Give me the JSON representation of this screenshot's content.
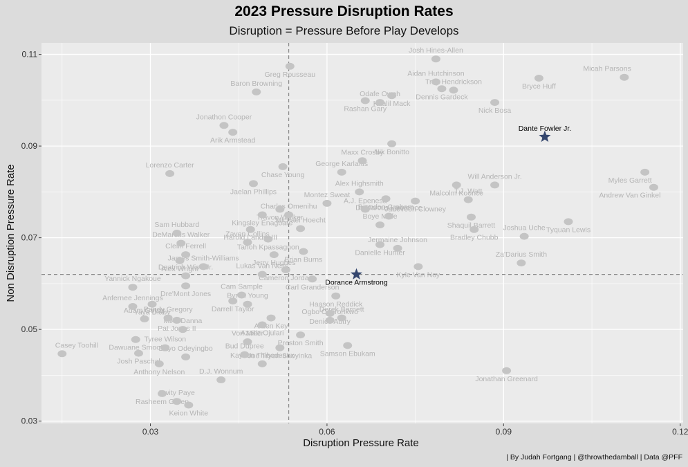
{
  "chart_data": {
    "type": "scatter",
    "title": "2023 Pressure Disruption Rates",
    "subtitle": "Disruption =  Pressure Before Play Develops",
    "xlabel": "Disruption Pressure Rate",
    "ylabel": "Non Disruption Pressure Rate",
    "xlim": [
      0.0115,
      0.1205
    ],
    "ylim": [
      0.0295,
      0.1125
    ],
    "xticks": [
      "0.03",
      "0.06",
      "0.09",
      "0.12"
    ],
    "yticks": [
      "0.03",
      "0.05",
      "0.07",
      "0.09",
      "0.11"
    ],
    "reference_lines": {
      "x": 0.0535,
      "y": 0.062
    },
    "grid": true,
    "caption": "| By Judah Fortgang | @throwthedamball | Data @PFF",
    "colors": {
      "background": "#dcdcdc",
      "panel": "#ebebeb",
      "grid": "#ffffff",
      "muted": "#c4c4c4",
      "highlight": "#34466e"
    },
    "points": [
      {
        "name": "Josh Hines-Allen",
        "x": 0.0785,
        "y": 0.109,
        "highlight": false
      },
      {
        "name": "Greg Rousseau",
        "x": 0.0537,
        "y": 0.1074,
        "highlight": false
      },
      {
        "name": "Aidan Hutchinson",
        "x": 0.0785,
        "y": 0.104,
        "highlight": false
      },
      {
        "name": "Bryce Huff",
        "x": 0.096,
        "y": 0.1048,
        "highlight": false
      },
      {
        "name": "Micah Parsons",
        "x": 0.1105,
        "y": 0.105,
        "highlight": false
      },
      {
        "name": "Dennis Gardeck",
        "x": 0.0795,
        "y": 0.1025,
        "highlight": false
      },
      {
        "name": "Baron Browning",
        "x": 0.048,
        "y": 0.1018,
        "highlight": false
      },
      {
        "name": "Khalil Mack",
        "x": 0.071,
        "y": 0.101,
        "highlight": false
      },
      {
        "name": "Trey Hendrickson",
        "x": 0.0815,
        "y": 0.1022,
        "highlight": false
      },
      {
        "name": "Rashan Gary",
        "x": 0.0665,
        "y": 0.0999,
        "highlight": false
      },
      {
        "name": "Odafe Oweh",
        "x": 0.069,
        "y": 0.0995,
        "highlight": false
      },
      {
        "name": "Nick Bosa",
        "x": 0.0885,
        "y": 0.0995,
        "highlight": false
      },
      {
        "name": "Jonathon Cooper",
        "x": 0.0425,
        "y": 0.0945,
        "highlight": false
      },
      {
        "name": "Arik Armstead",
        "x": 0.044,
        "y": 0.093,
        "highlight": false
      },
      {
        "name": "Dante Fowler Jr.",
        "x": 0.097,
        "y": 0.092,
        "highlight": true
      },
      {
        "name": "Nik Bonitto",
        "x": 0.071,
        "y": 0.0905,
        "highlight": false
      },
      {
        "name": "Maxx Crosby",
        "x": 0.066,
        "y": 0.0868,
        "highlight": false
      },
      {
        "name": "Chase Young",
        "x": 0.0525,
        "y": 0.0855,
        "highlight": false
      },
      {
        "name": "Lorenzo Carter",
        "x": 0.0333,
        "y": 0.084,
        "highlight": false
      },
      {
        "name": "Myles Garrett",
        "x": 0.114,
        "y": 0.0843,
        "highlight": false
      },
      {
        "name": "George Karlaftis",
        "x": 0.0625,
        "y": 0.0843,
        "highlight": false
      },
      {
        "name": "Malcolm Koonce",
        "x": 0.082,
        "y": 0.0815,
        "highlight": false
      },
      {
        "name": "Will Anderson Jr.",
        "x": 0.0885,
        "y": 0.0815,
        "highlight": false
      },
      {
        "name": "Jaelan Phillips",
        "x": 0.0475,
        "y": 0.0818,
        "highlight": false
      },
      {
        "name": "Alex Highsmith",
        "x": 0.0655,
        "y": 0.08,
        "highlight": false
      },
      {
        "name": "Andrew Van Ginkel",
        "x": 0.1155,
        "y": 0.081,
        "highlight": false
      },
      {
        "name": "T.J. Watt",
        "x": 0.084,
        "y": 0.0783,
        "highlight": false
      },
      {
        "name": "Brandon Graham",
        "x": 0.07,
        "y": 0.0785,
        "highlight": false
      },
      {
        "name": "Montez Sweat",
        "x": 0.06,
        "y": 0.0775,
        "highlight": false
      },
      {
        "name": "Travon Walker",
        "x": 0.052,
        "y": 0.0762,
        "highlight": false
      },
      {
        "name": "A.J. Epenesa",
        "x": 0.0665,
        "y": 0.0762,
        "highlight": false
      },
      {
        "name": "Jadeveon Clowney",
        "x": 0.075,
        "y": 0.078,
        "highlight": false
      },
      {
        "name": "DeMarcus Lawrence",
        "x": 0.0705,
        "y": 0.0747,
        "highlight": false
      },
      {
        "name": "Kingsley Enagbare",
        "x": 0.049,
        "y": 0.075,
        "highlight": false
      },
      {
        "name": "Charles Omenihu",
        "x": 0.0535,
        "y": 0.075,
        "highlight": false
      },
      {
        "name": "Shaquil Barrett",
        "x": 0.0845,
        "y": 0.0745,
        "highlight": false
      },
      {
        "name": "Boye Mafe",
        "x": 0.069,
        "y": 0.0728,
        "highlight": false
      },
      {
        "name": "Tyquan Lewis",
        "x": 0.101,
        "y": 0.0735,
        "highlight": false
      },
      {
        "name": "Sam Hubbard",
        "x": 0.0345,
        "y": 0.071,
        "highlight": false
      },
      {
        "name": "Harold Landry III",
        "x": 0.047,
        "y": 0.0718,
        "highlight": false
      },
      {
        "name": "Michael Hoecht",
        "x": 0.0555,
        "y": 0.072,
        "highlight": false
      },
      {
        "name": "Bradley Chubb",
        "x": 0.085,
        "y": 0.0718,
        "highlight": false
      },
      {
        "name": "Zaven Collins",
        "x": 0.0465,
        "y": 0.069,
        "highlight": false
      },
      {
        "name": "Tanoh Kpassagnon",
        "x": 0.05,
        "y": 0.0697,
        "highlight": false
      },
      {
        "name": "DeMarcus Walker",
        "x": 0.0352,
        "y": 0.0688,
        "highlight": false
      },
      {
        "name": "Danielle Hunter",
        "x": 0.069,
        "y": 0.0685,
        "highlight": false
      },
      {
        "name": "Joshua Uche",
        "x": 0.0935,
        "y": 0.0703,
        "highlight": false
      },
      {
        "name": "Brian Burns",
        "x": 0.056,
        "y": 0.067,
        "highlight": false
      },
      {
        "name": "Jermaine Johnson",
        "x": 0.072,
        "y": 0.0677,
        "highlight": false
      },
      {
        "name": "Jerry Hughes",
        "x": 0.051,
        "y": 0.0663,
        "highlight": false
      },
      {
        "name": "Clelin Ferrell",
        "x": 0.036,
        "y": 0.0663,
        "highlight": false
      },
      {
        "name": "Alex Wright",
        "x": 0.035,
        "y": 0.065,
        "highlight": false
      },
      {
        "name": "Za'Darius Smith",
        "x": 0.093,
        "y": 0.0645,
        "highlight": false
      },
      {
        "name": "Cameron Jordan",
        "x": 0.053,
        "y": 0.063,
        "highlight": false
      },
      {
        "name": "James Smith-Williams",
        "x": 0.039,
        "y": 0.0637,
        "highlight": false
      },
      {
        "name": "Kyle Van Noy",
        "x": 0.0755,
        "y": 0.0637,
        "highlight": false
      },
      {
        "name": "Deatrich Wise Jr.",
        "x": 0.036,
        "y": 0.0617,
        "highlight": false
      },
      {
        "name": "Dorance Armstrong",
        "x": 0.065,
        "y": 0.062,
        "highlight": true
      },
      {
        "name": "Lukas Van Ness",
        "x": 0.049,
        "y": 0.062,
        "highlight": false
      },
      {
        "name": "Carl Granderson",
        "x": 0.0575,
        "y": 0.061,
        "highlight": false
      },
      {
        "name": "Yannick Ngakoue",
        "x": 0.027,
        "y": 0.0592,
        "highlight": false
      },
      {
        "name": "Dre'Mont Jones",
        "x": 0.036,
        "y": 0.0595,
        "highlight": false
      },
      {
        "name": "Cam Sample",
        "x": 0.0455,
        "y": 0.0575,
        "highlight": false
      },
      {
        "name": "Darrell Taylor",
        "x": 0.044,
        "y": 0.0562,
        "highlight": false
      },
      {
        "name": "Byron Young",
        "x": 0.0465,
        "y": 0.0555,
        "highlight": false
      },
      {
        "name": "Haason Reddick",
        "x": 0.0615,
        "y": 0.0573,
        "highlight": false
      },
      {
        "name": "Anfernee Jennings",
        "x": 0.027,
        "y": 0.055,
        "highlight": false
      },
      {
        "name": "Yaya Diaby",
        "x": 0.0303,
        "y": 0.0555,
        "highlight": false
      },
      {
        "name": "Randy Gregory",
        "x": 0.033,
        "y": 0.0525,
        "highlight": false
      },
      {
        "name": "Arden Key",
        "x": 0.0505,
        "y": 0.0525,
        "highlight": false
      },
      {
        "name": "Derek Barnett",
        "x": 0.0625,
        "y": 0.0525,
        "highlight": false
      },
      {
        "name": "Denico Autry",
        "x": 0.0605,
        "y": 0.0535,
        "highlight": false
      },
      {
        "name": "Adam Gotsis",
        "x": 0.029,
        "y": 0.0523,
        "highlight": false
      },
      {
        "name": "Pat Jones II",
        "x": 0.0345,
        "y": 0.052,
        "highlight": false
      },
      {
        "name": "Mike Danna",
        "x": 0.0355,
        "y": 0.05,
        "highlight": false
      },
      {
        "name": "Azeez Ojulari",
        "x": 0.049,
        "y": 0.051,
        "highlight": false
      },
      {
        "name": "Ogbo Okoronkwo",
        "x": 0.0605,
        "y": 0.052,
        "highlight": false
      },
      {
        "name": "Dawuane Smoot",
        "x": 0.0275,
        "y": 0.0478,
        "highlight": false
      },
      {
        "name": "Von Miller",
        "x": 0.0465,
        "y": 0.0473,
        "highlight": false
      },
      {
        "name": "Preston Smith",
        "x": 0.0555,
        "y": 0.0488,
        "highlight": false
      },
      {
        "name": "Tyree Wilson",
        "x": 0.0325,
        "y": 0.046,
        "highlight": false
      },
      {
        "name": "Samson Ebukam",
        "x": 0.0635,
        "y": 0.0465,
        "highlight": false
      },
      {
        "name": "Bud Dupree",
        "x": 0.046,
        "y": 0.0445,
        "highlight": false
      },
      {
        "name": "Joe Tryon-Shoyinka",
        "x": 0.052,
        "y": 0.046,
        "highlight": false
      },
      {
        "name": "Casey Toohill",
        "x": 0.015,
        "y": 0.0447,
        "highlight": false
      },
      {
        "name": "Josh Paschal",
        "x": 0.028,
        "y": 0.0448,
        "highlight": false
      },
      {
        "name": "Dayo Odeyingbo",
        "x": 0.036,
        "y": 0.044,
        "highlight": false
      },
      {
        "name": "Anthony Nelson",
        "x": 0.0315,
        "y": 0.0425,
        "highlight": false
      },
      {
        "name": "Kayvon Thibodeaux",
        "x": 0.049,
        "y": 0.0425,
        "highlight": false
      },
      {
        "name": "Jonathan Greenard",
        "x": 0.0905,
        "y": 0.041,
        "highlight": false
      },
      {
        "name": "D.J. Wonnum",
        "x": 0.042,
        "y": 0.039,
        "highlight": false
      },
      {
        "name": "Rasheem Green",
        "x": 0.032,
        "y": 0.036,
        "highlight": false
      },
      {
        "name": "Kwity Paye",
        "x": 0.0345,
        "y": 0.0343,
        "highlight": false
      },
      {
        "name": "Keion White",
        "x": 0.0365,
        "y": 0.0335,
        "highlight": false
      }
    ]
  }
}
